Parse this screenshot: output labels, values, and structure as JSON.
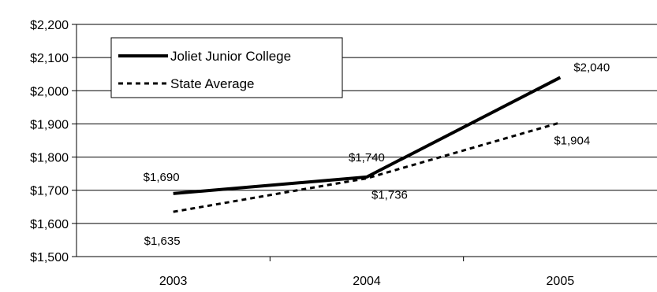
{
  "chart_data": {
    "type": "line",
    "title": "",
    "xlabel": "",
    "ylabel": "",
    "categories": [
      "2003",
      "2004",
      "2005"
    ],
    "ylim": [
      1500,
      2200
    ],
    "yticks": [
      1500,
      1600,
      1700,
      1800,
      1900,
      2000,
      2100,
      2200
    ],
    "ytick_labels": [
      "$1,500",
      "$1,600",
      "$1,700",
      "$1,800",
      "$1,900",
      "$2,000",
      "$2,100",
      "$2,200"
    ],
    "grid": true,
    "legend_position": "top-left",
    "series": [
      {
        "name": "Joliet Junior College",
        "values": [
          1690,
          1740,
          2040
        ],
        "labels": [
          "$1,690",
          "$1,740",
          "$2,040"
        ],
        "style": "solid",
        "color": "#000000"
      },
      {
        "name": "State Average",
        "values": [
          1635,
          1736,
          1904
        ],
        "labels": [
          "$1,635",
          "$1,736",
          "$1,904"
        ],
        "style": "dashed",
        "color": "#000000"
      }
    ]
  }
}
